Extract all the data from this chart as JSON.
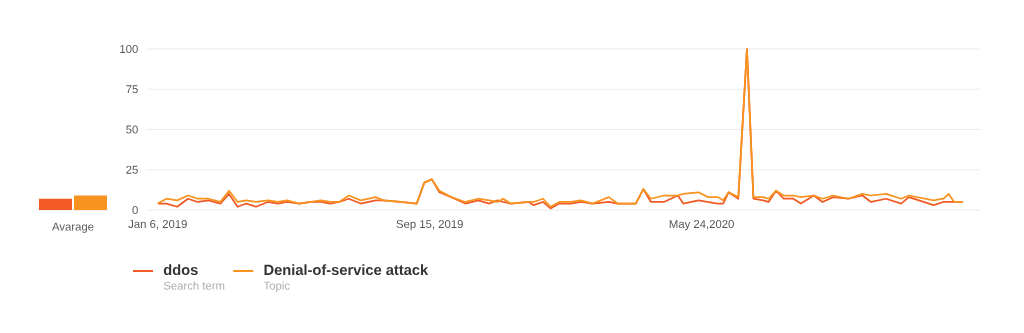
{
  "chart_data": [
    {
      "type": "bar",
      "categories": [
        "Avarage"
      ],
      "series": [
        {
          "color": "#f15a24",
          "values": [
            7
          ]
        },
        {
          "color": "#f7931e",
          "values": [
            9
          ]
        }
      ],
      "ylim": [
        0,
        100
      ],
      "tick_labels": "x"
    },
    {
      "type": "line",
      "x": [
        "2019-01-06",
        "2019-01-14",
        "2019-01-24",
        "2019-02-03",
        "2019-02-12",
        "2019-02-22",
        "2019-03-05",
        "2019-03-13",
        "2019-03-21",
        "2019-03-29",
        "2019-04-07",
        "2019-04-18",
        "2019-04-27",
        "2019-05-06",
        "2019-05-17",
        "2019-05-28",
        "2019-06-06",
        "2019-06-15",
        "2019-06-23",
        "2019-07-02",
        "2019-07-13",
        "2019-07-27",
        "2019-08-03",
        "2019-08-19",
        "2019-09-03",
        "2019-09-10",
        "2019-09-17",
        "2019-09-24",
        "2019-10-05",
        "2019-10-18",
        "2019-10-30",
        "2019-11-09",
        "2019-11-17",
        "2019-11-22",
        "2019-11-29",
        "2019-12-16",
        "2019-12-20",
        "2019-12-29",
        "2020-01-05",
        "2020-01-13",
        "2020-01-24",
        "2020-02-02",
        "2020-02-13",
        "2020-02-28",
        "2020-03-07",
        "2020-03-24",
        "2020-03-31",
        "2020-04-07",
        "2020-04-19",
        "2020-05-02",
        "2020-05-07",
        "2020-05-21",
        "2020-05-30",
        "2020-06-08",
        "2020-06-13",
        "2020-06-18",
        "2020-06-27",
        "2020-07-05",
        "2020-07-11",
        "2020-07-20",
        "2020-07-25",
        "2020-08-01",
        "2020-08-08",
        "2020-08-17",
        "2020-08-24",
        "2020-09-05",
        "2020-09-13",
        "2020-09-23",
        "2020-10-07",
        "2020-10-20",
        "2020-10-28",
        "2020-11-11",
        "2020-11-25",
        "2020-12-02",
        "2020-12-25",
        "2021-01-03",
        "2021-01-08",
        "2021-01-13",
        "2021-01-21"
      ],
      "series": [
        {
          "name": "ddos",
          "color": "#f15a24",
          "values": [
            4,
            4,
            2,
            7,
            5,
            6,
            4,
            10,
            2,
            4,
            2,
            5,
            4,
            5,
            4,
            5,
            5,
            4,
            5,
            7,
            4,
            6,
            6,
            5,
            4,
            17,
            19,
            11,
            8,
            4,
            6,
            4,
            6,
            5,
            4,
            5,
            3,
            5,
            1,
            4,
            4,
            5,
            4,
            5,
            4,
            4,
            13,
            5,
            5,
            9,
            4,
            6,
            5,
            4,
            4,
            11,
            7,
            100,
            7,
            6,
            5,
            12,
            7,
            7,
            4,
            9,
            5,
            8,
            7,
            9,
            5,
            7,
            4,
            8,
            3,
            5,
            5,
            5,
            5
          ]
        },
        {
          "name": "Denial-of-service attack",
          "color": "#f7931e",
          "values": [
            4,
            7,
            6,
            9,
            7,
            7,
            5,
            12,
            5,
            6,
            5,
            6,
            5,
            6,
            4,
            5,
            6,
            5,
            5,
            9,
            6,
            8,
            6,
            5,
            4,
            17,
            19,
            12,
            8,
            5,
            7,
            6,
            5,
            7,
            4,
            5,
            5,
            7,
            2,
            5,
            5,
            6,
            4,
            8,
            4,
            4,
            13,
            7,
            9,
            9,
            10,
            11,
            8,
            8,
            6,
            11,
            8,
            100,
            8,
            8,
            7,
            12,
            9,
            9,
            8,
            9,
            7,
            9,
            7,
            10,
            9,
            10,
            7,
            9,
            6,
            7,
            10,
            5,
            5
          ]
        }
      ],
      "xlim": [
        "2018-12-27",
        "2021-02-06"
      ],
      "xticks": [
        {
          "value": "2019-01-06",
          "label": "Jan 6, 2019"
        },
        {
          "value": "2019-09-15",
          "label": "Sep 15, 2019"
        },
        {
          "value": "2020-05-24",
          "label": "May 24,2020"
        }
      ],
      "ylim": [
        0,
        100
      ],
      "yticks": [
        0,
        25,
        50,
        75,
        100
      ],
      "grid": "y",
      "legend": "bottom",
      "annotations": [
        "Search term",
        "Topic"
      ]
    }
  ]
}
